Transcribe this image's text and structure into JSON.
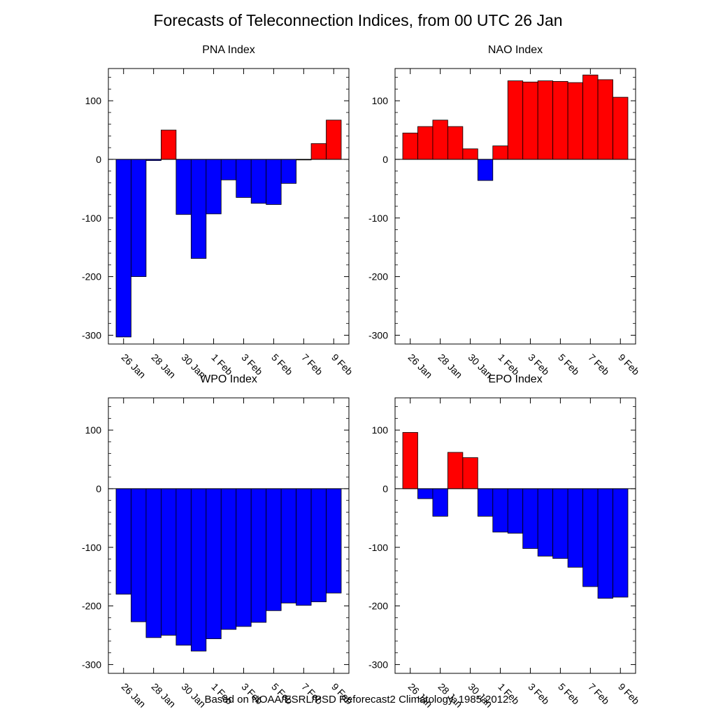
{
  "title": "Forecasts of Teleconnection Indices, from 00 UTC 26 Jan",
  "footnote": "Based on NOAA/ESRL/PSD Reforecast2 Climatology, 1985-2012.",
  "colors": {
    "positive": "#ff0000",
    "negative": "#0000ff",
    "axis": "#000000"
  },
  "chart_data": [
    {
      "type": "bar",
      "title": "PNA Index",
      "categories": [
        "26 Jan",
        "27 Jan",
        "28 Jan",
        "29 Jan",
        "30 Jan",
        "31 Jan",
        "1 Feb",
        "2 Feb",
        "3 Feb",
        "4 Feb",
        "5 Feb",
        "6 Feb",
        "7 Feb",
        "8 Feb",
        "9 Feb"
      ],
      "values": [
        -303,
        -200,
        -2,
        50,
        -94,
        -169,
        -93,
        -35,
        -65,
        -75,
        -77,
        -41,
        -1,
        27,
        67
      ],
      "x_tick_labels": [
        "26 Jan",
        "28 Jan",
        "30 Jan",
        "1 Feb",
        "3 Feb",
        "5 Feb",
        "7 Feb",
        "9 Feb"
      ],
      "y_tick_labels": [
        "100",
        "0",
        "-100",
        "-200",
        "-300"
      ],
      "y_ticks": [
        100,
        0,
        -100,
        -200,
        -300
      ],
      "ylim": [
        -315,
        155
      ]
    },
    {
      "type": "bar",
      "title": "NAO Index",
      "categories": [
        "26 Jan",
        "27 Jan",
        "28 Jan",
        "29 Jan",
        "30 Jan",
        "31 Jan",
        "1 Feb",
        "2 Feb",
        "3 Feb",
        "4 Feb",
        "5 Feb",
        "6 Feb",
        "7 Feb",
        "8 Feb",
        "9 Feb"
      ],
      "values": [
        45,
        56,
        67,
        56,
        18,
        -36,
        23,
        134,
        132,
        134,
        133,
        131,
        144,
        136,
        106
      ],
      "x_tick_labels": [
        "26 Jan",
        "28 Jan",
        "30 Jan",
        "1 Feb",
        "3 Feb",
        "5 Feb",
        "7 Feb",
        "9 Feb"
      ],
      "y_tick_labels": [
        "100",
        "0",
        "-100",
        "-200",
        "-300"
      ],
      "y_ticks": [
        100,
        0,
        -100,
        -200,
        -300
      ],
      "ylim": [
        -315,
        155
      ]
    },
    {
      "type": "bar",
      "title": "WPO Index",
      "categories": [
        "26 Jan",
        "27 Jan",
        "28 Jan",
        "29 Jan",
        "30 Jan",
        "31 Jan",
        "1 Feb",
        "2 Feb",
        "3 Feb",
        "4 Feb",
        "5 Feb",
        "6 Feb",
        "7 Feb",
        "8 Feb",
        "9 Feb"
      ],
      "values": [
        -180,
        -227,
        -254,
        -250,
        -267,
        -277,
        -256,
        -240,
        -235,
        -228,
        -208,
        -195,
        -199,
        -193,
        -178
      ],
      "x_tick_labels": [
        "26 Jan",
        "28 Jan",
        "30 Jan",
        "1 Feb",
        "3 Feb",
        "5 Feb",
        "7 Feb",
        "9 Feb"
      ],
      "y_tick_labels": [
        "100",
        "0",
        "-100",
        "-200",
        "-300"
      ],
      "y_ticks": [
        100,
        0,
        -100,
        -200,
        -300
      ],
      "ylim": [
        -315,
        155
      ]
    },
    {
      "type": "bar",
      "title": "EPO Index",
      "categories": [
        "26 Jan",
        "27 Jan",
        "28 Jan",
        "29 Jan",
        "30 Jan",
        "31 Jan",
        "1 Feb",
        "2 Feb",
        "3 Feb",
        "4 Feb",
        "5 Feb",
        "6 Feb",
        "7 Feb",
        "8 Feb",
        "9 Feb"
      ],
      "values": [
        96,
        -17,
        -47,
        62,
        53,
        -47,
        -74,
        -76,
        -102,
        -115,
        -119,
        -134,
        -167,
        -187,
        -185
      ],
      "x_tick_labels": [
        "26 Jan",
        "28 Jan",
        "30 Jan",
        "1 Feb",
        "3 Feb",
        "5 Feb",
        "7 Feb",
        "9 Feb"
      ],
      "y_tick_labels": [
        "100",
        "0",
        "-100",
        "-200",
        "-300"
      ],
      "y_ticks": [
        100,
        0,
        -100,
        -200,
        -300
      ],
      "ylim": [
        -315,
        155
      ]
    }
  ]
}
